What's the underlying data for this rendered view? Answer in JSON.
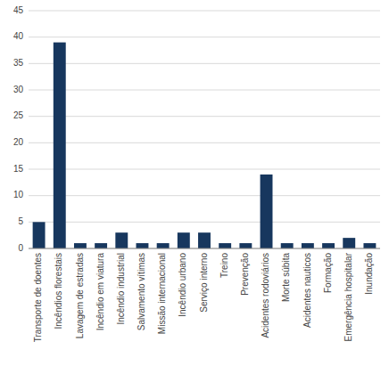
{
  "chart_data": {
    "type": "bar",
    "categories": [
      "Transporte de doentes",
      "Incêndios florestais",
      "Lavagem de estradas",
      "Incêndio em viatura",
      "Incêndio industrial",
      "Salvamento vítimas",
      "Missão internacional",
      "Incêndio urbano",
      "Serviço interno",
      "Treino",
      "Prevenção",
      "Acidentes rodoviários",
      "Morte súbita",
      "Acidentes nauticos",
      "Formação",
      "Emergência hospitalar",
      "Inundação"
    ],
    "values": [
      5,
      39,
      1,
      1,
      3,
      1,
      1,
      3,
      3,
      1,
      1,
      14,
      1,
      1,
      1,
      2,
      1
    ],
    "color": "#17375E",
    "ylim": [
      0,
      45
    ],
    "yticks": [
      0,
      5,
      10,
      15,
      20,
      25,
      30,
      35,
      40,
      45
    ],
    "grid": true
  }
}
